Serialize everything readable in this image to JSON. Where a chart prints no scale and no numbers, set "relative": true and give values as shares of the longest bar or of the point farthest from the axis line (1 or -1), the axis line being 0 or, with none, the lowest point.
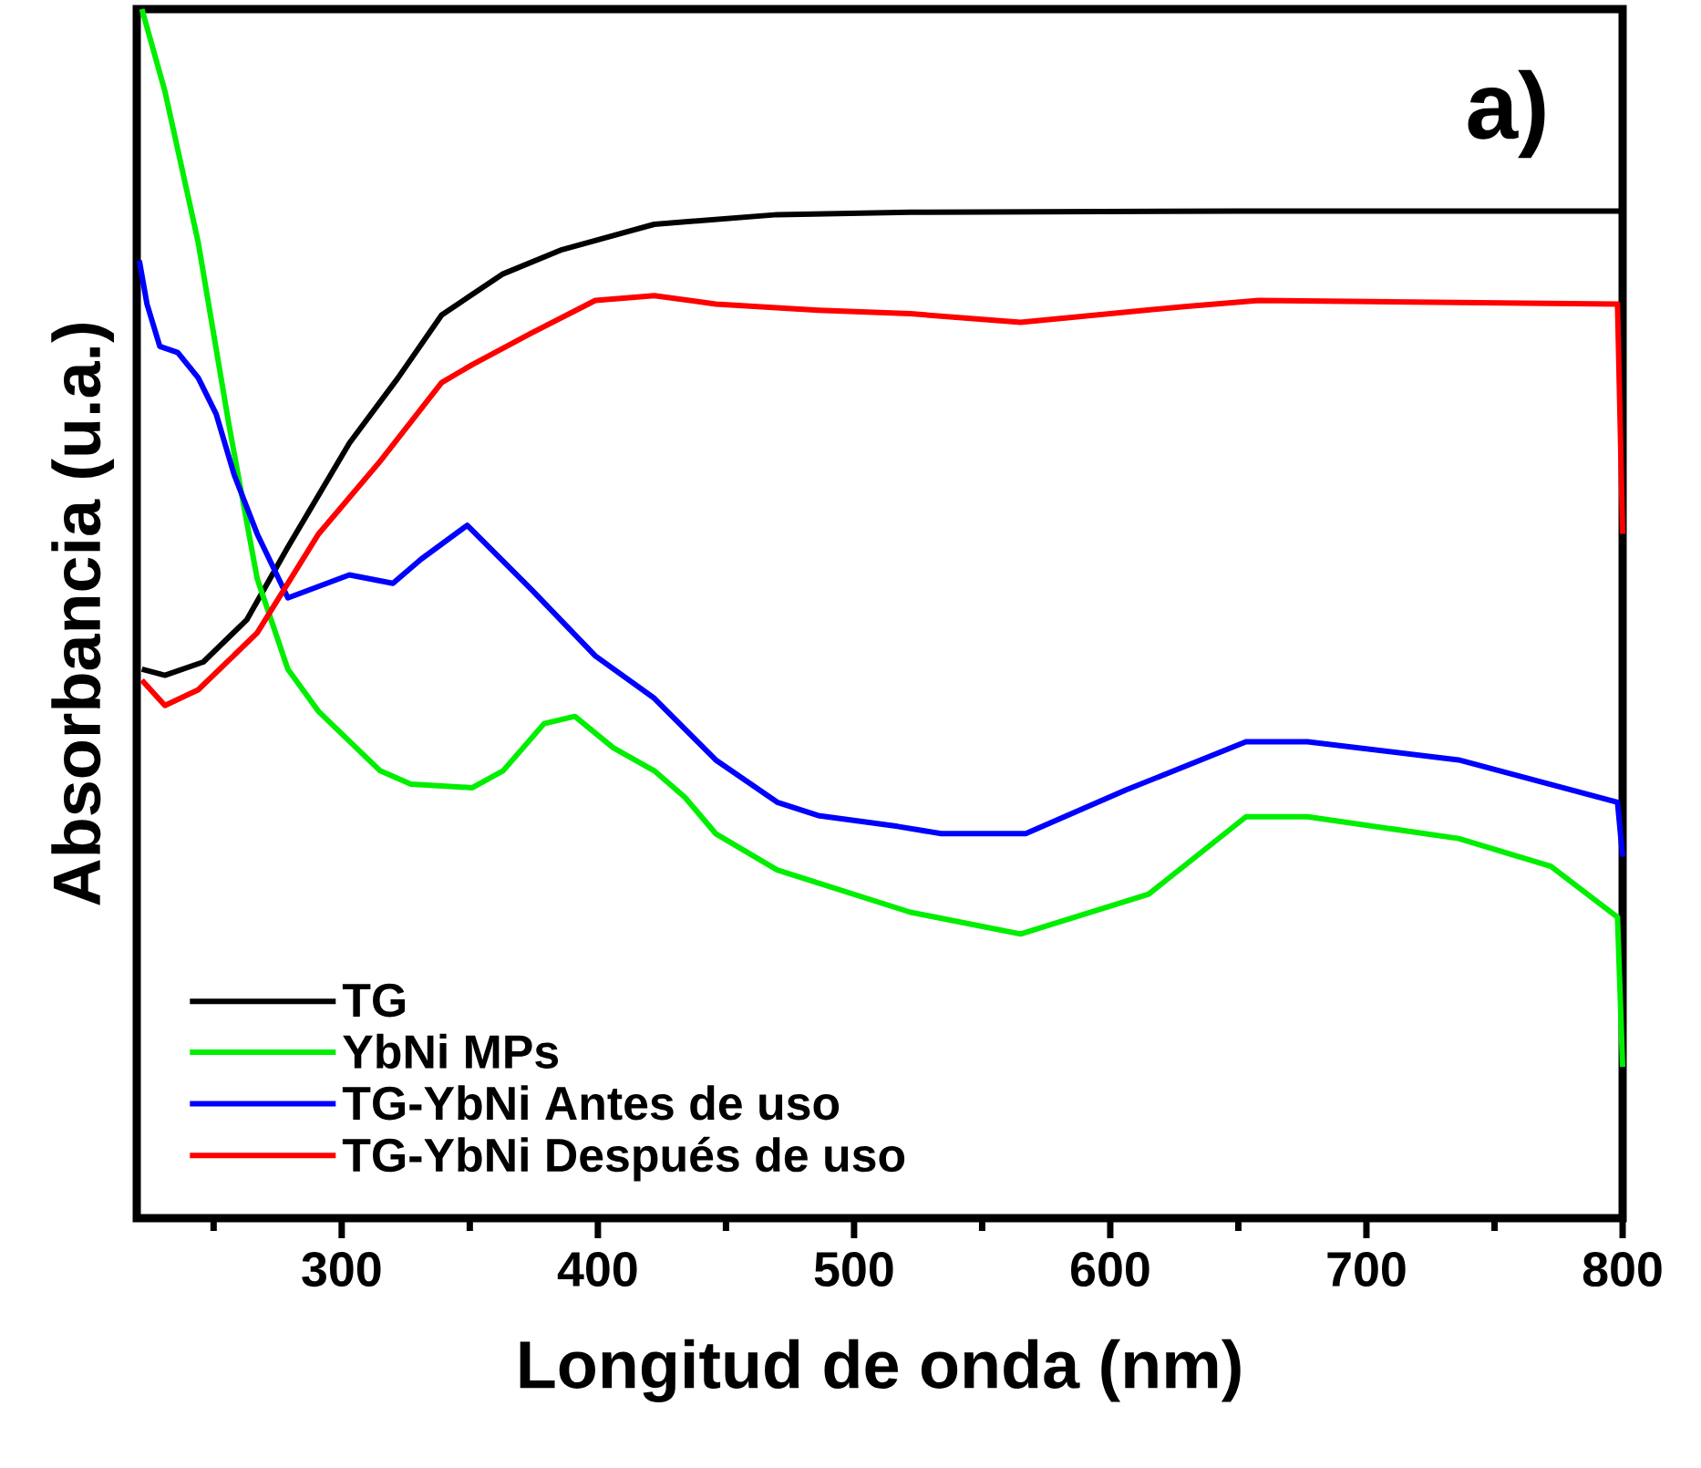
{
  "chart_data": {
    "type": "line",
    "relative": true,
    "xlabel": "Longitud de onda (nm)",
    "ylabel": "Absorbancia (u.a.)",
    "annotations": [
      "a)"
    ],
    "xlim": [
      220,
      800
    ],
    "xticks": [
      {
        "value": 250,
        "label": null
      },
      300,
      {
        "value": 350,
        "label": null
      },
      400,
      {
        "value": 450,
        "label": null
      },
      500,
      {
        "value": 550,
        "label": null
      },
      600,
      {
        "value": 650,
        "label": null
      },
      700,
      {
        "value": 750,
        "label": null
      },
      800
    ],
    "tick_labels": "x",
    "legend": "bottom left",
    "line_style": "solid",
    "marker": "none",
    "series": [
      {
        "name": "TG",
        "color": "#000000",
        "x": [
          222,
          231,
          246,
          263,
          279,
          303,
          322,
          339,
          363,
          386,
          422,
          470,
          522,
          650,
          800
        ],
        "values": [
          0.454,
          0.449,
          0.46,
          0.495,
          0.555,
          0.641,
          0.695,
          0.747,
          0.781,
          0.801,
          0.822,
          0.83,
          0.832,
          0.833,
          0.833
        ]
      },
      {
        "name": "YbNi MPs",
        "color": "#00ee00",
        "x": [
          222,
          231,
          244,
          256,
          267,
          279,
          291,
          315,
          327,
          351,
          363,
          379,
          391,
          406,
          422,
          434,
          446,
          470,
          522,
          565,
          615,
          653,
          677,
          736,
          772,
          798,
          800
        ],
        "values": [
          1.0,
          0.932,
          0.807,
          0.656,
          0.529,
          0.454,
          0.419,
          0.37,
          0.359,
          0.356,
          0.37,
          0.409,
          0.415,
          0.389,
          0.37,
          0.348,
          0.318,
          0.288,
          0.253,
          0.235,
          0.268,
          0.332,
          0.332,
          0.314,
          0.291,
          0.249,
          0.125
        ]
      },
      {
        "name": "TG-YbNi **Antes de uso**",
        "color": "#0000ff",
        "x": [
          221,
          224,
          229,
          236,
          244,
          251,
          258,
          267,
          279,
          303,
          320,
          331,
          349,
          374,
          399,
          422,
          446,
          470,
          486,
          517,
          534,
          567,
          606,
          653,
          677,
          736,
          798,
          800
        ],
        "values": [
          0.792,
          0.756,
          0.721,
          0.716,
          0.695,
          0.665,
          0.615,
          0.566,
          0.513,
          0.532,
          0.525,
          0.545,
          0.573,
          0.52,
          0.465,
          0.43,
          0.379,
          0.344,
          0.333,
          0.324,
          0.318,
          0.318,
          0.354,
          0.394,
          0.394,
          0.379,
          0.344,
          0.299
        ]
      },
      {
        "name": "TG-YbNi **Después de uso**",
        "color": "#ff0000",
        "x": [
          222,
          231,
          244,
          267,
          291,
          315,
          339,
          351,
          374,
          399,
          422,
          446,
          486,
          522,
          565,
          629,
          658,
          798,
          800
        ],
        "values": [
          0.445,
          0.424,
          0.437,
          0.484,
          0.566,
          0.626,
          0.691,
          0.706,
          0.732,
          0.759,
          0.763,
          0.756,
          0.751,
          0.748,
          0.741,
          0.754,
          0.759,
          0.756,
          0.566
        ]
      }
    ]
  }
}
